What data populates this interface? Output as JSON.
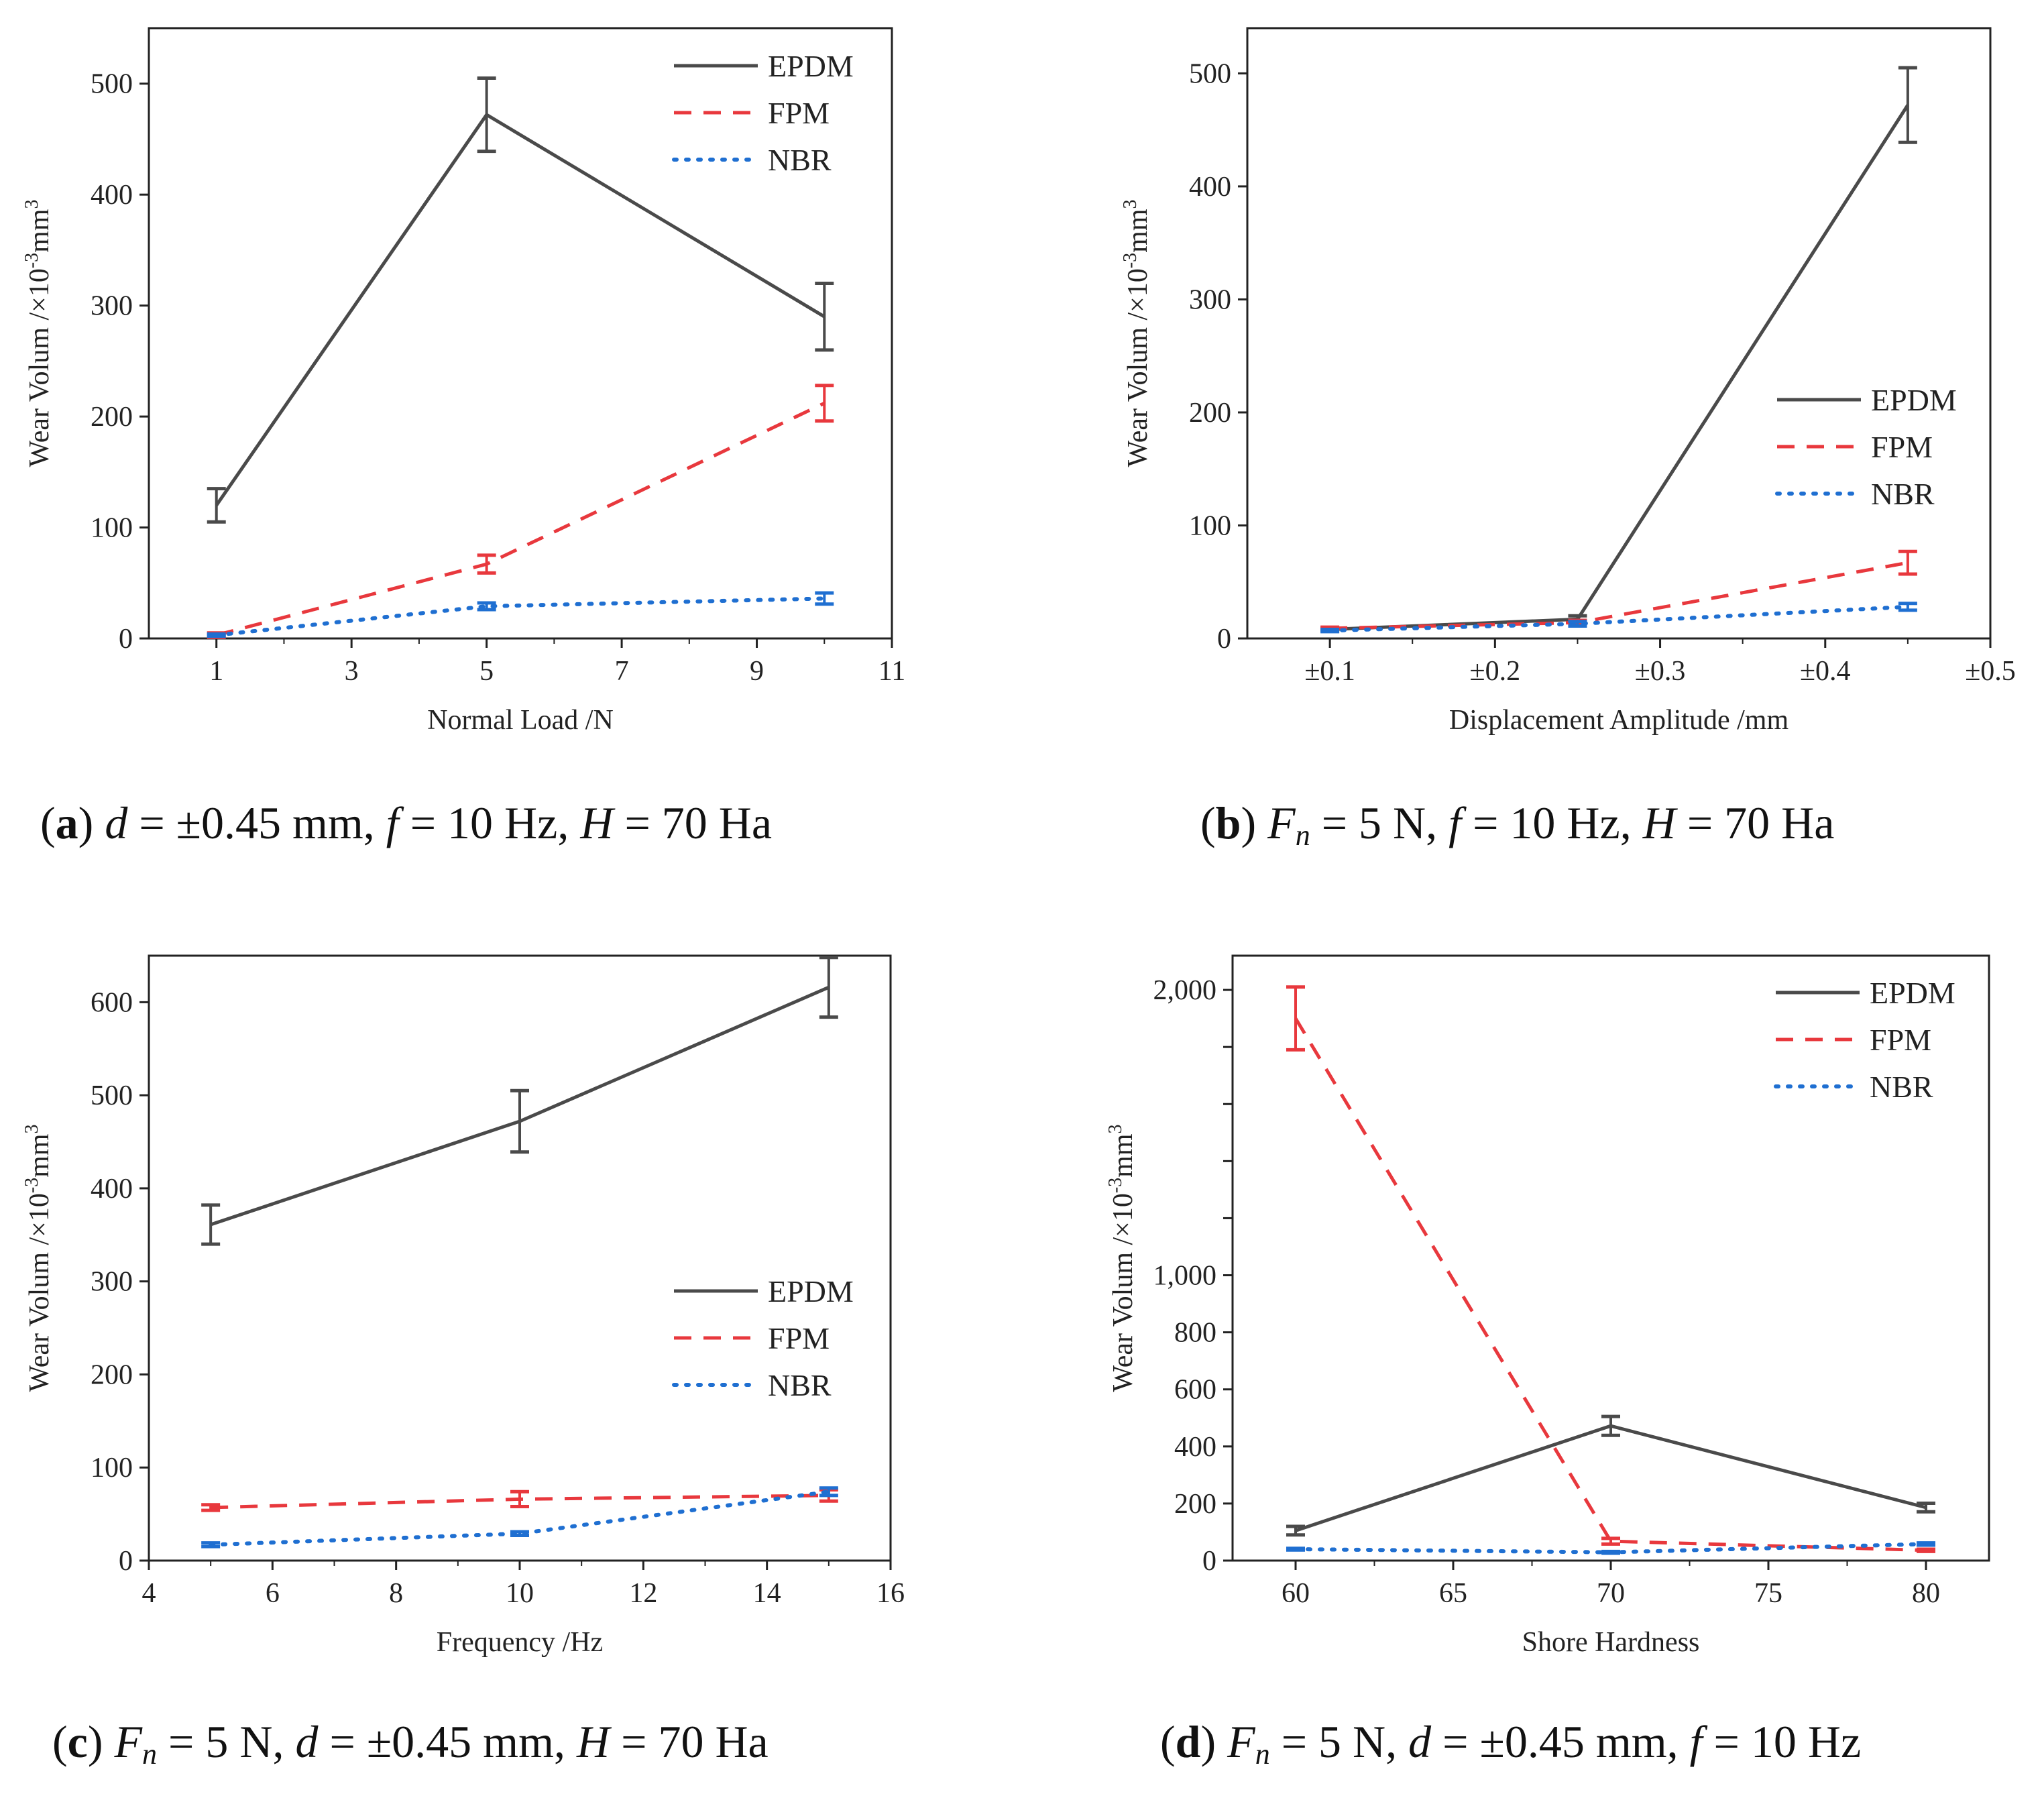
{
  "colors": {
    "EPDM": "#4a4a4a",
    "FPM": "#e8383d",
    "NBR": "#1f6fd1",
    "axis": "#222222"
  },
  "chart_data": [
    {
      "type": "line",
      "id": "a",
      "xlabel": "Normal Load /N",
      "ylabel": "Wear Volum /×10",
      "ylabel_exp": "-3",
      "ylabel_unit": "mm",
      "ylabel_unit_exp": "3",
      "xlim": [
        0,
        11
      ],
      "ylim": [
        0,
        550
      ],
      "xticks": [
        1,
        3,
        5,
        7,
        9,
        11
      ],
      "xticklabels": [
        "1",
        "3",
        "5",
        "7",
        "9",
        "11"
      ],
      "yticks": [
        0,
        100,
        200,
        300,
        400,
        500
      ],
      "yticklabels": [
        "0",
        "100",
        "200",
        "300",
        "400",
        "500"
      ],
      "legend_position": "top-right",
      "series": [
        {
          "name": "EPDM",
          "x": [
            1,
            5,
            10
          ],
          "values": [
            120,
            472,
            290
          ],
          "errors": [
            15,
            33,
            30
          ]
        },
        {
          "name": "FPM",
          "x": [
            1,
            5,
            10
          ],
          "values": [
            3,
            67,
            212
          ],
          "errors": [
            2,
            8,
            16
          ]
        },
        {
          "name": "NBR",
          "x": [
            1,
            5,
            10
          ],
          "values": [
            3,
            29,
            36
          ],
          "errors": [
            1,
            3,
            5
          ]
        }
      ],
      "caption": {
        "label": "(a)",
        "parts": [
          {
            "t": "d",
            "i": true
          },
          {
            "t": " = ±0.45 mm, "
          },
          {
            "t": "f",
            "i": true
          },
          {
            "t": " = 10 Hz, "
          },
          {
            "t": "H",
            "i": true
          },
          {
            "t": " = 70 Ha"
          }
        ]
      }
    },
    {
      "type": "line",
      "id": "b",
      "xlabel": "Displacement Amplitude /mm",
      "ylabel": "Wear Volum /×10",
      "ylabel_exp": "-3",
      "ylabel_unit": "mm",
      "ylabel_unit_exp": "3",
      "xlim": [
        0.05,
        0.5
      ],
      "ylim": [
        0,
        540
      ],
      "xticks": [
        0.1,
        0.2,
        0.3,
        0.4,
        0.5
      ],
      "xticklabels": [
        "±0.1",
        "±0.2",
        "±0.3",
        "±0.4",
        "±0.5"
      ],
      "yticks": [
        0,
        100,
        200,
        300,
        400,
        500
      ],
      "yticklabels": [
        "0",
        "100",
        "200",
        "300",
        "400",
        "500"
      ],
      "legend_position": "center-right",
      "series": [
        {
          "name": "EPDM",
          "x": [
            0.1,
            0.25,
            0.45
          ],
          "values": [
            8,
            17,
            472
          ],
          "errors": [
            1,
            3,
            33
          ]
        },
        {
          "name": "FPM",
          "x": [
            0.1,
            0.25,
            0.45
          ],
          "values": [
            9,
            14,
            67
          ],
          "errors": [
            1,
            2,
            10
          ]
        },
        {
          "name": "NBR",
          "x": [
            0.1,
            0.25,
            0.45
          ],
          "values": [
            7,
            13,
            28
          ],
          "errors": [
            1,
            2,
            3
          ]
        }
      ],
      "caption": {
        "label": "(b)",
        "parts": [
          {
            "t": "F",
            "i": true
          },
          {
            "t": "n",
            "i": true,
            "sub": true
          },
          {
            "t": " = 5 N, "
          },
          {
            "t": "f",
            "i": true
          },
          {
            "t": " = 10 Hz, "
          },
          {
            "t": "H",
            "i": true
          },
          {
            "t": " = 70 Ha"
          }
        ]
      }
    },
    {
      "type": "line",
      "id": "c",
      "xlabel": "Frequency /Hz",
      "ylabel": "Wear Volum /×10",
      "ylabel_exp": "-3",
      "ylabel_unit": "mm",
      "ylabel_unit_exp": "3",
      "xlim": [
        4,
        16
      ],
      "ylim": [
        0,
        650
      ],
      "xticks": [
        4,
        6,
        8,
        10,
        12,
        14,
        16
      ],
      "xticklabels": [
        "4",
        "6",
        "8",
        "10",
        "12",
        "14",
        "16"
      ],
      "yticks": [
        0,
        100,
        200,
        300,
        400,
        500,
        600
      ],
      "yticklabels": [
        "0",
        "100",
        "200",
        "300",
        "400",
        "500",
        "600"
      ],
      "legend_position": "center-right",
      "series": [
        {
          "name": "EPDM",
          "x": [
            5,
            10,
            15
          ],
          "values": [
            361,
            472,
            616
          ],
          "errors": [
            21,
            33,
            32
          ]
        },
        {
          "name": "FPM",
          "x": [
            5,
            10,
            15
          ],
          "values": [
            57,
            66,
            70
          ],
          "errors": [
            3,
            8,
            6
          ]
        },
        {
          "name": "NBR",
          "x": [
            5,
            10,
            15
          ],
          "values": [
            17,
            29,
            74
          ],
          "errors": [
            2,
            2,
            4
          ]
        }
      ],
      "caption": {
        "label": "(c)",
        "parts": [
          {
            "t": "F",
            "i": true
          },
          {
            "t": "n",
            "i": true,
            "sub": true
          },
          {
            "t": " = 5 N, "
          },
          {
            "t": "d",
            "i": true
          },
          {
            "t": " = ±0.45 mm, "
          },
          {
            "t": "H",
            "i": true
          },
          {
            "t": " = 70 Ha"
          }
        ]
      }
    },
    {
      "type": "line",
      "id": "d",
      "xlabel": "Shore Hardness",
      "ylabel": "Wear Volum /×10",
      "ylabel_exp": "-3",
      "ylabel_unit": "mm",
      "ylabel_unit_exp": "3",
      "xlim": [
        58,
        82
      ],
      "ylim": [
        0,
        2120
      ],
      "xticks": [
        60,
        65,
        70,
        75,
        80
      ],
      "xticklabels": [
        "60",
        "65",
        "70",
        "75",
        "80"
      ],
      "yticks": [
        0,
        200,
        400,
        600,
        800,
        1000,
        1200,
        1400,
        1600,
        1800,
        2000
      ],
      "yticklabels": [
        "0",
        "200",
        "400",
        "600",
        "800",
        "1,000",
        "",
        "",
        "",
        "",
        "2,000"
      ],
      "legend_position": "top-right",
      "series": [
        {
          "name": "EPDM",
          "x": [
            60,
            70,
            80
          ],
          "values": [
            105,
            472,
            186
          ],
          "errors": [
            15,
            33,
            15
          ]
        },
        {
          "name": "FPM",
          "x": [
            60,
            70,
            80
          ],
          "values": [
            1900,
            68,
            36
          ],
          "errors": [
            110,
            10,
            4
          ]
        },
        {
          "name": "NBR",
          "x": [
            60,
            70,
            80
          ],
          "values": [
            40,
            29,
            58
          ],
          "errors": [
            3,
            3,
            4
          ]
        }
      ],
      "caption": {
        "label": "(d)",
        "parts": [
          {
            "t": "F",
            "i": true
          },
          {
            "t": "n",
            "i": true,
            "sub": true
          },
          {
            "t": " = 5 N, "
          },
          {
            "t": "d",
            "i": true
          },
          {
            "t": " = ±0.45 mm, "
          },
          {
            "t": "f",
            "i": true
          },
          {
            "t": " = 10 Hz"
          }
        ]
      }
    }
  ]
}
